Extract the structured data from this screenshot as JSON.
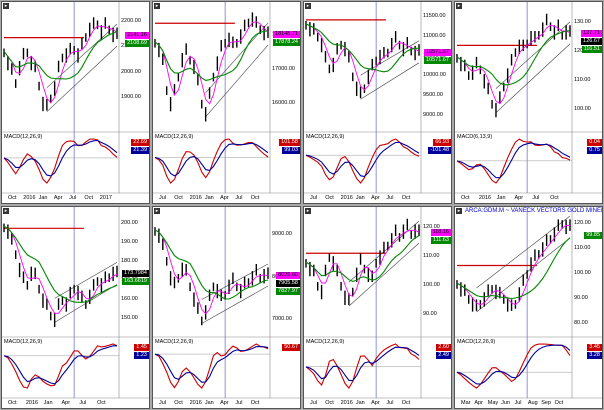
{
  "colors": {
    "price": "#000000",
    "ma_fast": "#ff00ff",
    "ma_slow": "#008800",
    "resistance": "#cc0000",
    "trend": "#444444",
    "cursor": "#7777cc",
    "macd": "#cc0000",
    "signal": "#000099",
    "background": "#a9a9a9"
  },
  "chart_data": [
    {
      "type": "line",
      "macd_label": "MACD(12,26,9)",
      "title": "",
      "x_ticks": [
        "Oct",
        "2016",
        "Jan",
        "Apr",
        "Jul",
        "Oct",
        "2017"
      ],
      "y_ticks": [
        "2200.00",
        "2100.00",
        "2000.00",
        "1900.00"
      ],
      "ylim": [
        1800,
        2250
      ],
      "badges": [
        {
          "text": "2141.16",
          "color": "#ff00ff",
          "text_color": "#000"
        },
        {
          "text": "2108.69",
          "color": "#008800",
          "text_color": "#fff"
        }
      ],
      "macd_badges": [
        {
          "text": "22.69",
          "color": "#cc0000",
          "text_color": "#fff"
        },
        {
          "text": "21.39",
          "color": "#000099",
          "text_color": "#fff"
        }
      ],
      "resistance": 2134,
      "series": [
        {
          "values": [
            2080,
            2040,
            2000,
            1960,
            2020,
            2060,
            2080,
            2040,
            2010,
            1950,
            1880,
            1860,
            1900,
            1940,
            2010,
            2060,
            2070,
            2080,
            2090,
            2070,
            2100,
            2140,
            2170,
            2180,
            2190,
            2160,
            2180,
            2170,
            2150,
            2140
          ]
        }
      ]
    },
    {
      "type": "line",
      "macd_label": "MACD(12,26,9)",
      "title": "",
      "x_ticks": [
        "Jul",
        "Oct",
        "2016",
        "Jan",
        "Apr",
        "Jul",
        "Oct"
      ],
      "y_ticks": [
        "18000.00",
        "17000.00",
        "16000.00"
      ],
      "ylim": [
        15400,
        18800
      ],
      "badges": [
        {
          "text": "18145.71",
          "color": "#ff00ff",
          "text_color": "#000"
        },
        {
          "text": "17878.24",
          "color": "#008800",
          "text_color": "#fff"
        }
      ],
      "macd_badges": [
        {
          "text": "101.58",
          "color": "#cc0000",
          "text_color": "#fff"
        },
        {
          "text": "99.03",
          "color": "#000099",
          "text_color": "#fff"
        }
      ],
      "resistance": 18350,
      "series": [
        {
          "values": [
            17800,
            17600,
            17200,
            16400,
            16000,
            16300,
            16800,
            17300,
            17500,
            17300,
            17100,
            16600,
            16000,
            15700,
            16200,
            16800,
            17200,
            17600,
            17800,
            17900,
            17700,
            17800,
            18000,
            18200,
            18400,
            18500,
            18300,
            18200,
            18100,
            18000
          ]
        }
      ]
    },
    {
      "type": "line",
      "macd_label": "MACD(12,26,9)",
      "title": "",
      "x_ticks": [
        "Jul",
        "Oct",
        "2016",
        "Jan",
        "Apr",
        "Jul",
        "Oct"
      ],
      "y_ticks": [
        "11500.00",
        "11000.00",
        "10500.00",
        "10000.00",
        "9500.00",
        "9000.00"
      ],
      "ylim": [
        8800,
        11700
      ],
      "badges": [
        {
          "text": "10571.67",
          "color": "#ff00ff",
          "text_color": "#000"
        },
        {
          "text": "10571.67",
          "color": "#008800",
          "text_color": "#fff"
        }
      ],
      "macd_badges": [
        {
          "text": "66.93",
          "color": "#cc0000",
          "text_color": "#fff"
        },
        {
          "text": "-101.48",
          "color": "#000099",
          "text_color": "#fff"
        }
      ],
      "resistance": 11400,
      "series": [
        {
          "values": [
            11300,
            11200,
            11100,
            11000,
            10800,
            10400,
            10200,
            10300,
            10600,
            10800,
            10700,
            10400,
            10000,
            9700,
            9500,
            9700,
            10000,
            10200,
            10400,
            10500,
            10500,
            10600,
            10800,
            10900,
            10800,
            10700,
            10750,
            10650,
            10600,
            10570
          ]
        }
      ]
    },
    {
      "type": "line",
      "macd_label": "MACD(6,13,9)",
      "title": "",
      "x_ticks": [
        "Oct",
        "2016",
        "Jan",
        "Apr",
        "Jul",
        "Oct"
      ],
      "y_ticks": [
        "130.00",
        "120.00",
        "110.00",
        "100.00"
      ],
      "ylim": [
        95,
        135
      ],
      "badges": [
        {
          "text": "127.71",
          "color": "#ff00ff",
          "text_color": "#000"
        },
        {
          "text": "126.67",
          "color": "#000000",
          "text_color": "#fff"
        },
        {
          "text": "116.51",
          "color": "#008800",
          "text_color": "#fff"
        }
      ],
      "macd_badges": [
        {
          "text": "0.04",
          "color": "#cc0000",
          "text_color": "#fff"
        },
        {
          "text": "0.75",
          "color": "#000099",
          "text_color": "#fff"
        }
      ],
      "resistance": 122,
      "series": [
        {
          "values": [
            118,
            116,
            114,
            112,
            113,
            115,
            114,
            110,
            106,
            102,
            100,
            103,
            108,
            112,
            116,
            120,
            122,
            121,
            123,
            125,
            124,
            126,
            128,
            130,
            129,
            127,
            128,
            126,
            127,
            126
          ]
        }
      ]
    },
    {
      "type": "line",
      "macd_label": "MACD(12,26,9)",
      "title": "",
      "x_ticks": [
        "Oct",
        "2016",
        "Jan",
        "Apr",
        "Jul",
        "Oct"
      ],
      "y_ticks": [
        "200.00",
        "190.00",
        "180.00",
        "170.00",
        "160.00",
        "150.00"
      ],
      "ylim": [
        145,
        205
      ],
      "badges": [
        {
          "text": "173.7984",
          "color": "#000000",
          "text_color": "#fff"
        },
        {
          "text": "163.6619",
          "color": "#008800",
          "text_color": "#fff"
        }
      ],
      "macd_badges": [
        {
          "text": "1.45",
          "color": "#cc0000",
          "text_color": "#fff"
        },
        {
          "text": "1.23",
          "color": "#000099",
          "text_color": "#fff"
        }
      ],
      "resistance": 197,
      "series": [
        {
          "values": [
            198,
            196,
            190,
            184,
            176,
            170,
            168,
            174,
            172,
            166,
            160,
            156,
            152,
            150,
            156,
            160,
            158,
            162,
            166,
            164,
            160,
            158,
            162,
            166,
            170,
            168,
            170,
            172,
            174,
            173
          ]
        }
      ]
    },
    {
      "type": "line",
      "macd_label": "MACD(12,26,9)",
      "title": "",
      "x_ticks": [
        "Jul",
        "Oct",
        "2016",
        "Jan",
        "Apr",
        "Jul",
        "Oct"
      ],
      "y_ticks": [
        "9000.00",
        "8000.00",
        "7000.00"
      ],
      "ylim": [
        6800,
        9500
      ],
      "badges": [
        {
          "text": "8026.60",
          "color": "#ff00ff",
          "text_color": "#000"
        },
        {
          "text": "7905.58",
          "color": "#000000",
          "text_color": "#fff"
        },
        {
          "text": "7827.97",
          "color": "#008800",
          "text_color": "#fff"
        }
      ],
      "macd_badges": [
        {
          "text": "50.67",
          "color": "#cc0000",
          "text_color": "#fff"
        },
        {
          "text": "",
          "color": "#000099",
          "text_color": "#fff"
        }
      ],
      "resistance": null,
      "series": [
        {
          "values": [
            9100,
            9000,
            8700,
            8400,
            8000,
            7800,
            8000,
            8200,
            8100,
            7800,
            7500,
            7200,
            7000,
            7200,
            7500,
            7800,
            7700,
            7500,
            7600,
            7800,
            7900,
            7800,
            7700,
            7800,
            7900,
            8000,
            8100,
            8000,
            8050,
            8020
          ]
        }
      ]
    },
    {
      "type": "line",
      "macd_label": "MACD(12,26,9)",
      "title": "",
      "x_ticks": [
        "Jul",
        "Oct",
        "2016",
        "Jan",
        "Apr",
        "Jul",
        "Oct"
      ],
      "y_ticks": [
        "120.00",
        "110.00",
        "100.00",
        "90.00"
      ],
      "ylim": [
        85,
        125
      ],
      "badges": [
        {
          "text": "118.16",
          "color": "#ff00ff",
          "text_color": "#000"
        },
        {
          "text": "111.63",
          "color": "#008800",
          "text_color": "#fff"
        }
      ],
      "macd_badges": [
        {
          "text": "2.60",
          "color": "#cc0000",
          "text_color": "#fff"
        },
        {
          "text": "2.49",
          "color": "#000099",
          "text_color": "#fff"
        }
      ],
      "resistance": 111,
      "series": [
        {
          "values": [
            108,
            106,
            104,
            100,
            98,
            104,
            110,
            108,
            104,
            100,
            96,
            94,
            98,
            104,
            108,
            106,
            104,
            102,
            108,
            110,
            112,
            114,
            116,
            118,
            117,
            119,
            120,
            118,
            119,
            118
          ]
        }
      ]
    },
    {
      "type": "line",
      "macd_label": "MACD(12,26,9)",
      "title": "ARCA:GDM.M ~ VANECK VECTORS GOLD MINERS",
      "x_ticks": [
        "Mar",
        "Apr",
        "May",
        "Jun",
        "Jul",
        "Aug",
        "Sep",
        "Oct"
      ],
      "y_ticks": [
        "120.00",
        "110.00",
        "100.00",
        "90.00",
        "80.00"
      ],
      "ylim": [
        78,
        124
      ],
      "badges": [
        {
          "text": "",
          "color": "#000000",
          "text_color": "#fff"
        },
        {
          "text": "99.85",
          "color": "#008800",
          "text_color": "#fff"
        }
      ],
      "macd_badges": [
        {
          "text": "3.45",
          "color": "#cc0000",
          "text_color": "#fff"
        },
        {
          "text": "3.28",
          "color": "#000099",
          "text_color": "#fff"
        }
      ],
      "resistance": 103,
      "series": [
        {
          "values": [
            96,
            94,
            92,
            90,
            88,
            86,
            88,
            90,
            92,
            94,
            93,
            91,
            90,
            88,
            86,
            88,
            92,
            96,
            100,
            104,
            106,
            108,
            110,
            112,
            114,
            116,
            118,
            120,
            119,
            118
          ]
        }
      ]
    }
  ]
}
